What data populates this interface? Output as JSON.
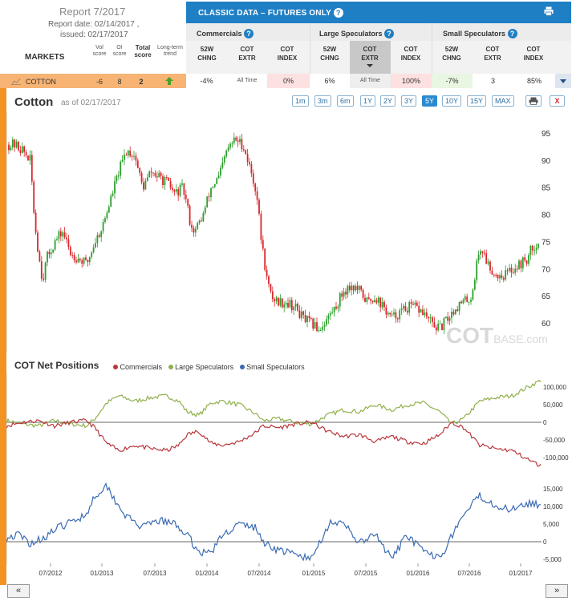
{
  "report": {
    "title": "Report 7/2017",
    "date_line": "Report date: 02/14/2017 ,",
    "issued_line": "issued: 02/17/2017"
  },
  "header": {
    "classic_title": "CLASSIC DATA – FUTURES ONLY",
    "groups": [
      "Commercials",
      "Large Speculators",
      "Small Speculators"
    ],
    "columns": [
      [
        "52W",
        "CHNG"
      ],
      [
        "COT",
        "EXTR"
      ],
      [
        "COT",
        "INDEX"
      ],
      [
        "52W",
        "CHNG"
      ],
      [
        "COT",
        "EXTR"
      ],
      [
        "COT",
        "INDEX"
      ],
      [
        "52W",
        "CHNG"
      ],
      [
        "COT",
        "EXTR"
      ],
      [
        "COT",
        "INDEX"
      ]
    ]
  },
  "markets": {
    "label": "MARKETS",
    "score_heads": [
      [
        "Vol",
        "score"
      ],
      [
        "OI",
        "score"
      ],
      [
        "Total",
        "score"
      ],
      [
        "Long-term",
        "trend"
      ]
    ]
  },
  "row": {
    "name": "COTTON",
    "vol_score": "-6",
    "oi_score": "8",
    "total_score": "2",
    "trend": "up",
    "values": [
      "-4%",
      "All Time",
      "0%",
      "6%",
      "All Time",
      "100%",
      "-7%",
      "3",
      "85%"
    ]
  },
  "colors": {
    "bar": "#1f7fc4",
    "orange": "#f39324",
    "row": "#f7b474",
    "up": "#2e9e2e",
    "down": "#d9262b",
    "commercials": "#b9383e",
    "large": "#8fb04a",
    "small": "#3b6bb3"
  },
  "price_chart": {
    "title": "Cotton",
    "as_of": "as of 02/17/2017",
    "ranges": [
      "1m",
      "3m",
      "6m",
      "1Y",
      "2Y",
      "3Y",
      "5Y",
      "10Y",
      "15Y",
      "MAX"
    ],
    "active_range": "5Y",
    "y_ticks": [
      "95",
      "90",
      "85",
      "80",
      "75",
      "70",
      "65",
      "60"
    ],
    "watermark": "COTBASE.com"
  },
  "positions_chart": {
    "title": "COT Net Positions",
    "legend": [
      "Commercials",
      "Large Speculators",
      "Small Speculators"
    ],
    "y_ticks_top": [
      "100,000",
      "50,000",
      "0",
      "-50,000",
      "-100,000"
    ],
    "y_ticks_bottom": [
      "15,000",
      "10,000",
      "5,000",
      "0",
      "-5,000"
    ],
    "x_ticks": [
      "07/2012",
      "01/2013",
      "07/2013",
      "01/2014",
      "07/2014",
      "01/2015",
      "07/2015",
      "01/2016",
      "07/2016",
      "01/2017"
    ]
  },
  "nav": {
    "prev": "«",
    "next": "»"
  }
}
